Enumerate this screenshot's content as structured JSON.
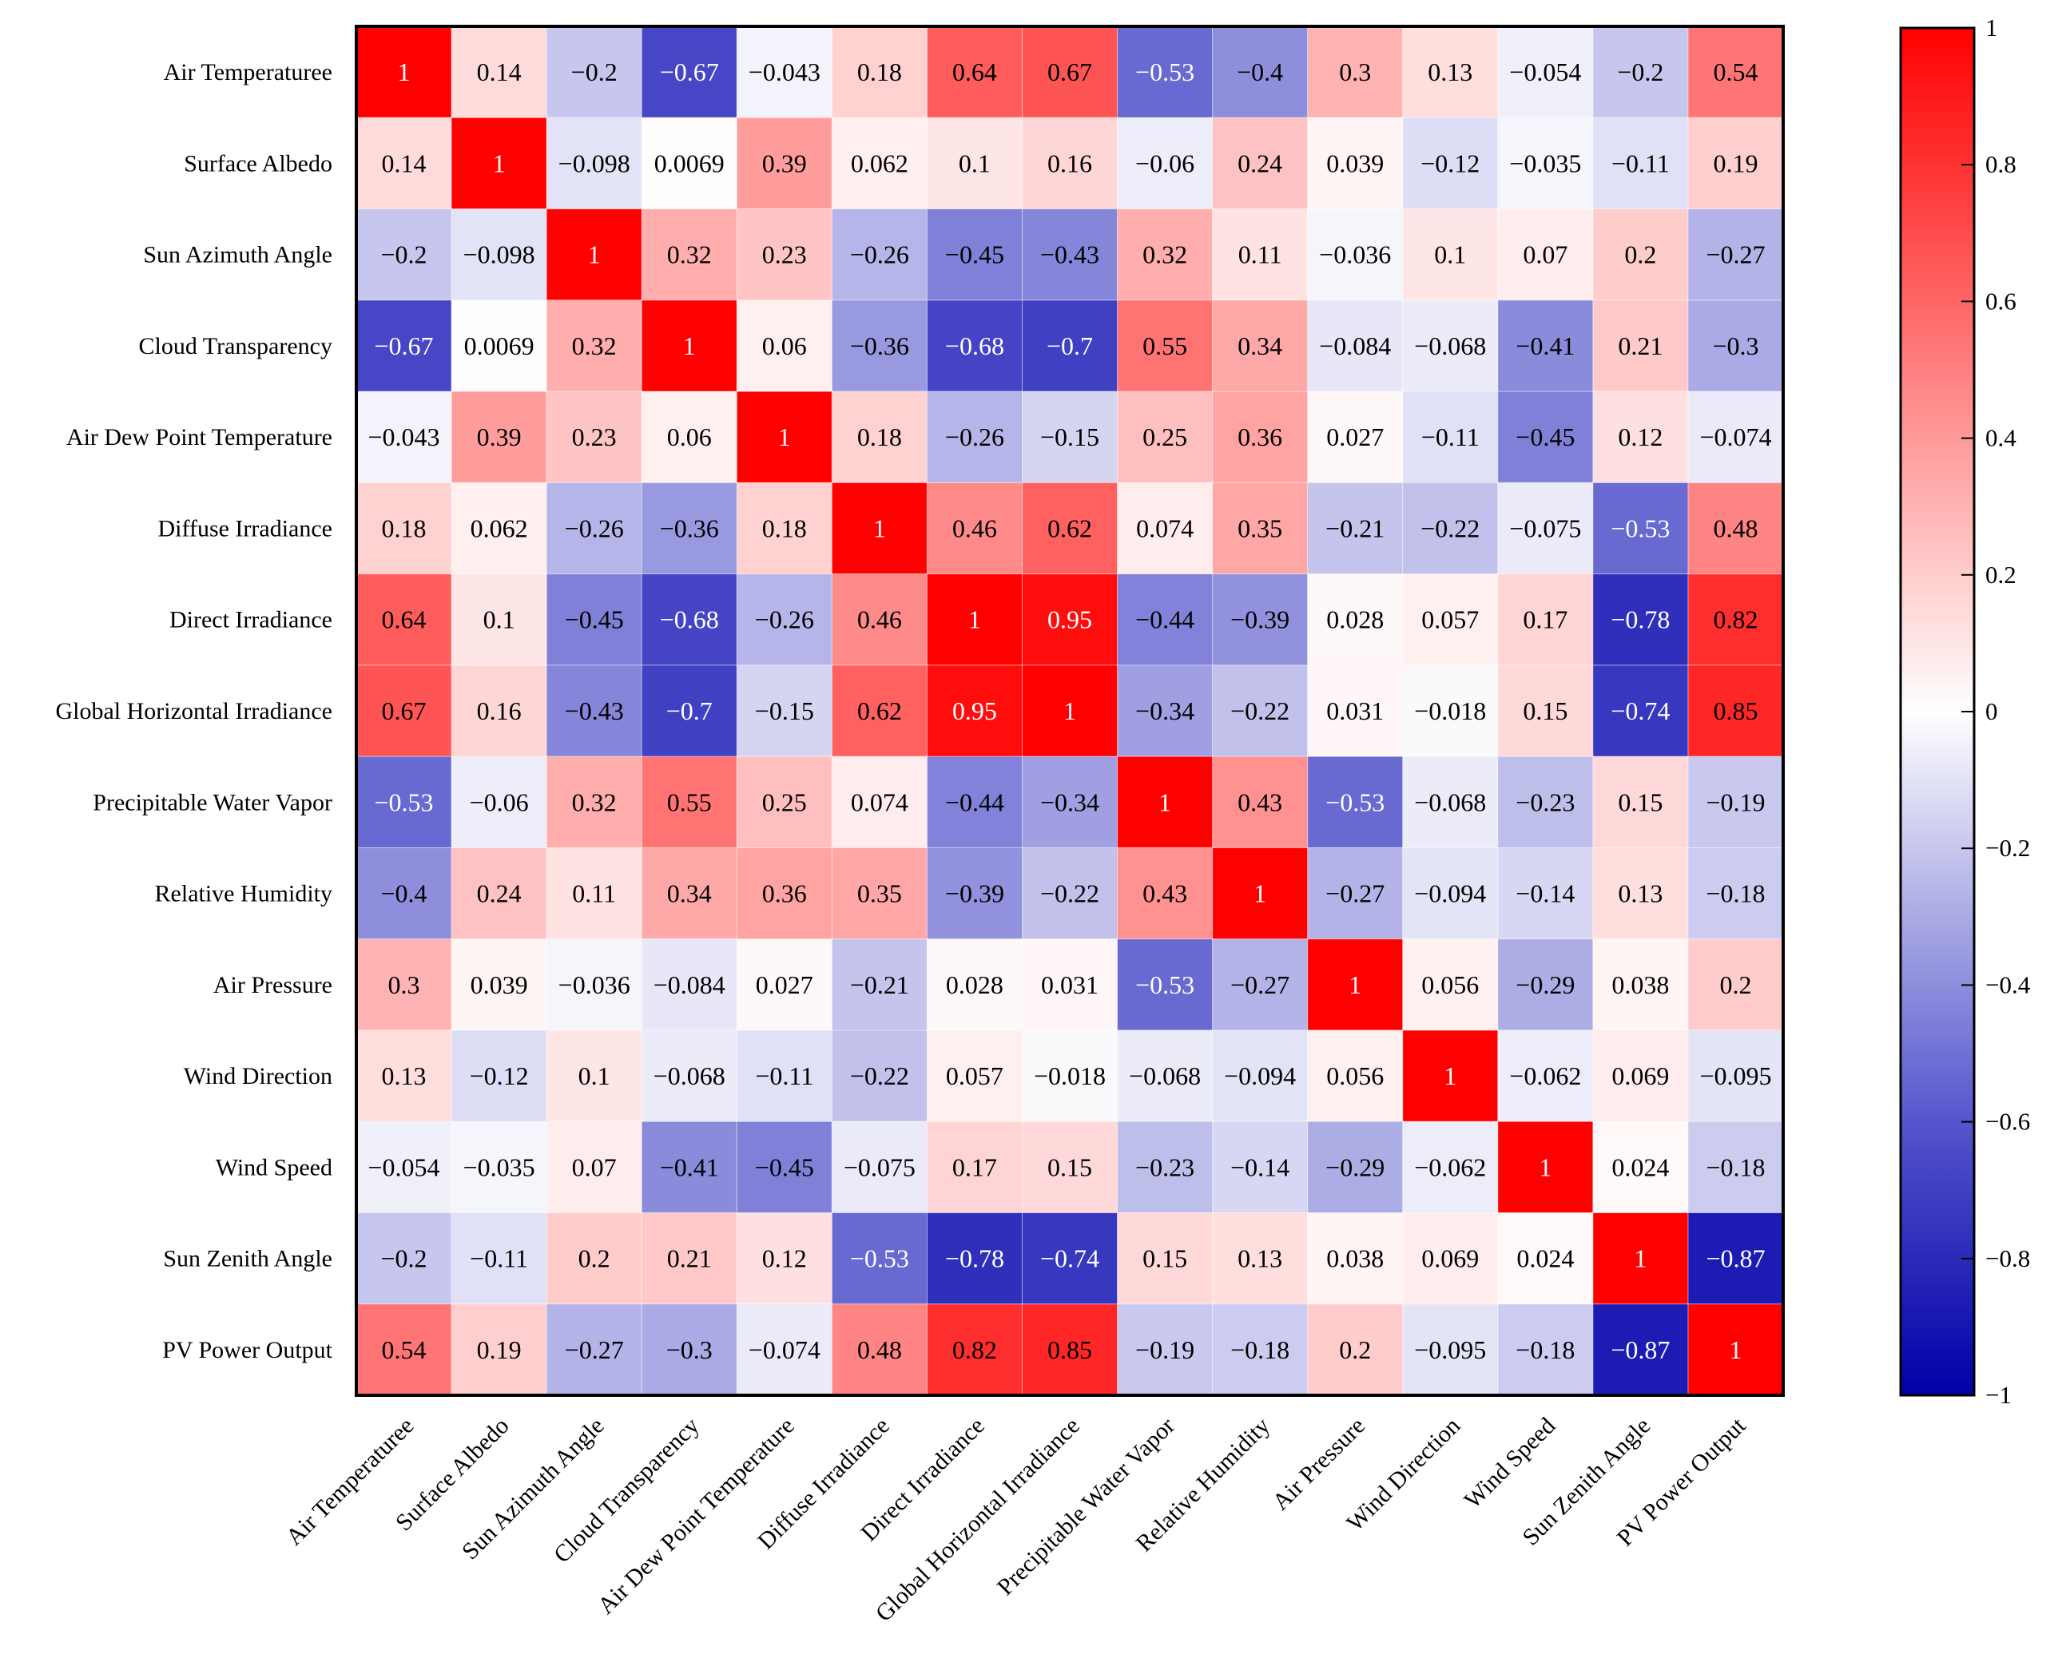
{
  "chart_data": {
    "type": "heatmap",
    "title": "",
    "labels": [
      "Air Temperaturee",
      "Surface Albedo",
      "Sun Azimuth Angle",
      "Cloud Transparency",
      "Air Dew Point Temperature",
      "Diffuse Irradiance",
      "Direct Irradiance",
      "Global Horizontal Irradiance",
      "Precipitable Water Vapor",
      "Relative Humidity",
      "Air Pressure",
      "Wind Direction",
      "Wind Speed",
      "Sun Zenith Angle",
      "PV Power Output"
    ],
    "matrix": [
      [
        1,
        0.14,
        -0.2,
        -0.67,
        -0.043,
        0.18,
        0.64,
        0.67,
        -0.53,
        -0.4,
        0.3,
        0.13,
        -0.054,
        -0.2,
        0.54
      ],
      [
        0.14,
        1,
        -0.098,
        0.0069,
        0.39,
        0.062,
        0.1,
        0.16,
        -0.06,
        0.24,
        0.039,
        -0.12,
        -0.035,
        -0.11,
        0.19
      ],
      [
        -0.2,
        -0.098,
        1,
        0.32,
        0.23,
        -0.26,
        -0.45,
        -0.43,
        0.32,
        0.11,
        -0.036,
        0.1,
        0.07,
        0.2,
        -0.27
      ],
      [
        -0.67,
        0.0069,
        0.32,
        1,
        0.06,
        -0.36,
        -0.68,
        -0.7,
        0.55,
        0.34,
        -0.084,
        -0.068,
        -0.41,
        0.21,
        -0.3
      ],
      [
        -0.043,
        0.39,
        0.23,
        0.06,
        1,
        0.18,
        -0.26,
        -0.15,
        0.25,
        0.36,
        0.027,
        -0.11,
        -0.45,
        0.12,
        -0.074
      ],
      [
        0.18,
        0.062,
        -0.26,
        -0.36,
        0.18,
        1,
        0.46,
        0.62,
        0.074,
        0.35,
        -0.21,
        -0.22,
        -0.075,
        -0.53,
        0.48
      ],
      [
        0.64,
        0.1,
        -0.45,
        -0.68,
        -0.26,
        0.46,
        1,
        0.95,
        -0.44,
        -0.39,
        0.028,
        0.057,
        0.17,
        -0.78,
        0.82
      ],
      [
        0.67,
        0.16,
        -0.43,
        -0.7,
        -0.15,
        0.62,
        0.95,
        1,
        -0.34,
        -0.22,
        0.031,
        -0.018,
        0.15,
        -0.74,
        0.85
      ],
      [
        -0.53,
        -0.06,
        0.32,
        0.55,
        0.25,
        0.074,
        -0.44,
        -0.34,
        1,
        0.43,
        -0.53,
        -0.068,
        -0.23,
        0.15,
        -0.19
      ],
      [
        -0.4,
        0.24,
        0.11,
        0.34,
        0.36,
        0.35,
        -0.39,
        -0.22,
        0.43,
        1,
        -0.27,
        -0.094,
        -0.14,
        0.13,
        -0.18
      ],
      [
        0.3,
        0.039,
        -0.036,
        -0.084,
        0.027,
        -0.21,
        0.028,
        0.031,
        -0.53,
        -0.27,
        1,
        0.056,
        -0.29,
        0.038,
        0.2
      ],
      [
        0.13,
        -0.12,
        0.1,
        -0.068,
        -0.11,
        -0.22,
        0.057,
        -0.018,
        -0.068,
        -0.094,
        0.056,
        1,
        -0.062,
        0.069,
        -0.095
      ],
      [
        -0.054,
        -0.035,
        0.07,
        -0.41,
        -0.45,
        -0.075,
        0.17,
        0.15,
        -0.23,
        -0.14,
        -0.29,
        -0.062,
        1,
        0.024,
        -0.18
      ],
      [
        -0.2,
        -0.11,
        0.2,
        0.21,
        0.12,
        -0.53,
        -0.78,
        -0.74,
        0.15,
        0.13,
        0.038,
        0.069,
        0.024,
        1,
        -0.87
      ],
      [
        0.54,
        0.19,
        -0.27,
        -0.3,
        -0.074,
        0.48,
        0.82,
        0.85,
        -0.19,
        -0.18,
        0.2,
        -0.095,
        -0.18,
        -0.87,
        1
      ]
    ],
    "value_range": [
      -1,
      1
    ],
    "colorbar": {
      "ticks": [
        1,
        0.8,
        0.6,
        0.4,
        0.2,
        0,
        -0.2,
        -0.4,
        -0.6,
        -0.8,
        -1
      ],
      "tick_labels": [
        "1",
        "0.8",
        "0.6",
        "0.4",
        "0.2",
        "0",
        "−0.2",
        "−0.4",
        "−0.6",
        "−0.8",
        "−1"
      ],
      "placement": "right"
    },
    "colors": {
      "negative": "#0000a8",
      "mid_negative": "#5555cc",
      "neutral": "#ffffff",
      "positive": "#ff0000"
    },
    "grid": false
  }
}
